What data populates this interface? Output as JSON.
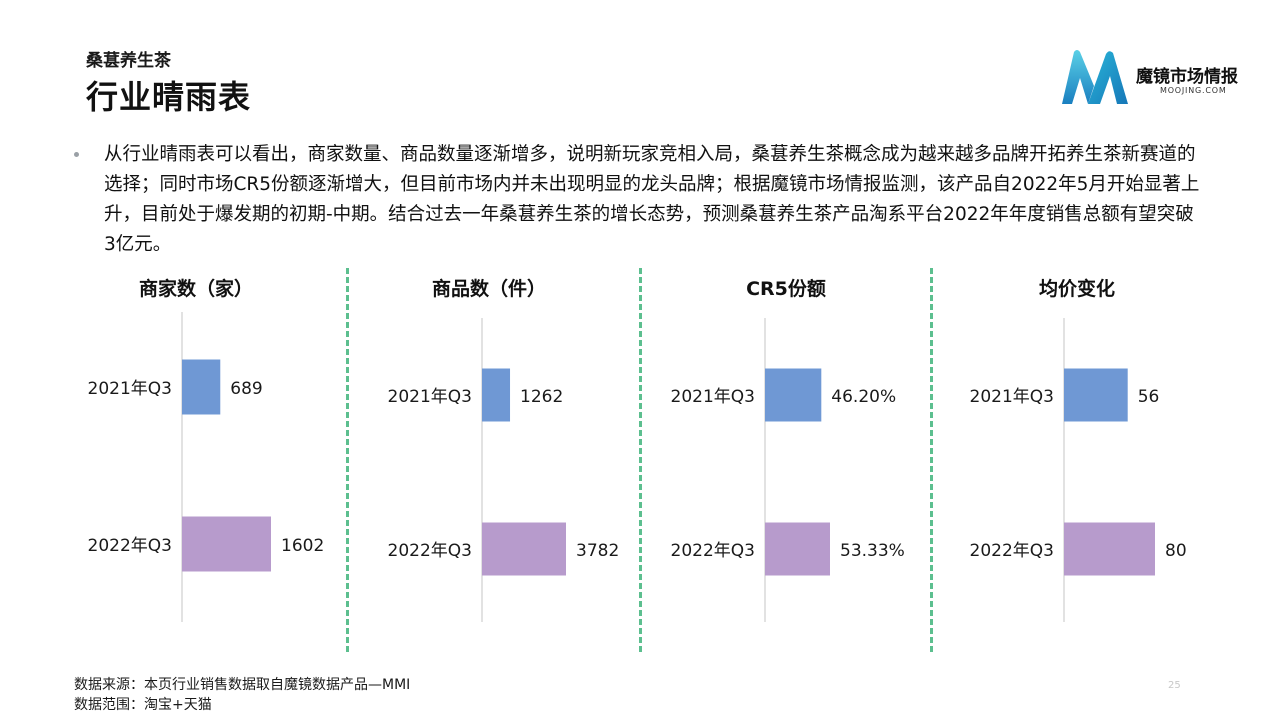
{
  "header": {
    "kicker": "桑葚养生茶",
    "title": "行业晴雨表"
  },
  "logo": {
    "name": "魔镜市场情报",
    "url": "MOOJING.COM",
    "colors": [
      "#2ab5d8",
      "#1a7fc0",
      "#5ad0e6"
    ]
  },
  "summary": "从行业晴雨表可以看出，商家数量、商品数量逐渐增多，说明新玩家竞相入局，桑葚养生茶概念成为越来越多品牌开拓养生茶新赛道的选择；同时市场CR5份额逐渐增大，但目前市场内并未出现明显的龙头品牌；根据魔镜市场情报监测，该产品自2022年5月开始显著上升，目前处于爆发期的初期-中期。结合过去一年桑葚养生茶的增长态势，预测桑葚养生茶产品淘系平台2022年年度销售总额有望突破3亿元。",
  "chart_data": [
    {
      "type": "bar",
      "orientation": "horizontal",
      "title": "商家数（家）",
      "categories": [
        "2021年Q3",
        "2022年Q3"
      ],
      "values": [
        689,
        1602
      ],
      "labels": [
        "689",
        "1602"
      ],
      "colors": [
        "#6f98d4",
        "#b79bcc"
      ]
    },
    {
      "type": "bar",
      "orientation": "horizontal",
      "title": "商品数（件）",
      "categories": [
        "2021年Q3",
        "2022年Q3"
      ],
      "values": [
        1262,
        3782
      ],
      "labels": [
        "1262",
        "3782"
      ],
      "colors": [
        "#6f98d4",
        "#b79bcc"
      ]
    },
    {
      "type": "bar",
      "orientation": "horizontal",
      "title": "CR5份额",
      "categories": [
        "2021年Q3",
        "2022年Q3"
      ],
      "values": [
        46.2,
        53.33
      ],
      "labels": [
        "46.20%",
        "53.33%"
      ],
      "colors": [
        "#6f98d4",
        "#b79bcc"
      ]
    },
    {
      "type": "bar",
      "orientation": "horizontal",
      "title": "均价变化",
      "categories": [
        "2021年Q3",
        "2022年Q3"
      ],
      "values": [
        56,
        80
      ],
      "labels": [
        "56",
        "80"
      ],
      "colors": [
        "#6f98d4",
        "#b79bcc"
      ]
    }
  ],
  "footer": {
    "source": "数据来源：本页行业销售数据取自魔镜数据产品—MMI",
    "scope": "数据范围：淘宝+天猫",
    "page_number": "25"
  },
  "accent": {
    "divider_color": "#5cbf8f"
  }
}
